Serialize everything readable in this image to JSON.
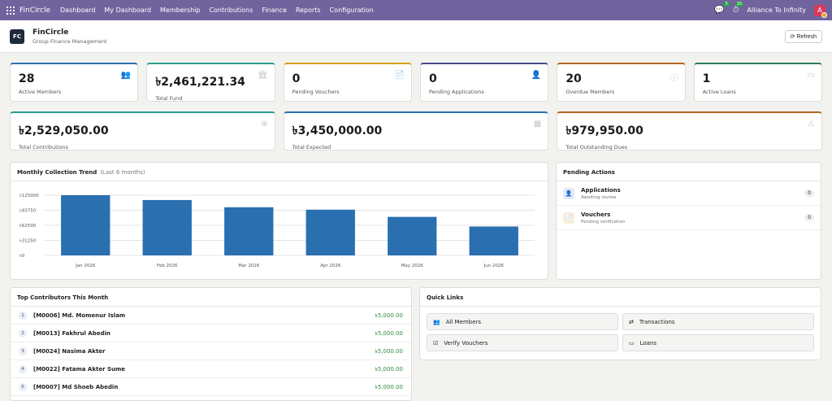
{
  "topbar": {
    "brand": "FinCircle",
    "nav": [
      "Dashboard",
      "My Dashboard",
      "Membership",
      "Contributions",
      "Finance",
      "Reports",
      "Configuration"
    ],
    "messages_count": "3",
    "activities_count": "31",
    "company": "Alliance To Infinity",
    "avatar_initial": "A"
  },
  "header": {
    "logo": "FC",
    "title": "FinCircle",
    "subtitle": "Group Finance Management",
    "refresh_label": "Refresh"
  },
  "stats_row1": [
    {
      "value": "28",
      "label": "Active Members",
      "icon": "users-icon",
      "color": "#2a6fb0"
    },
    {
      "value": "৳2,461,221.34",
      "label": "Total Fund",
      "icon": "bank-icon",
      "color": "#2a9d8f"
    },
    {
      "value": "0",
      "label": "Pending Vouchers",
      "icon": "file-icon",
      "color": "#d4a017"
    },
    {
      "value": "0",
      "label": "Pending Applications",
      "icon": "user-plus-icon",
      "color": "#4a4a8a"
    },
    {
      "value": "20",
      "label": "Overdue Members",
      "icon": "info-icon",
      "color": "#b5651d"
    },
    {
      "value": "1",
      "label": "Active Loans",
      "icon": "card-icon",
      "color": "#2a7d5a"
    }
  ],
  "stats_row2": [
    {
      "value": "৳2,529,050.00",
      "label": "Total Contributions",
      "icon": "plus-circle-icon",
      "color": "#2a9d8f"
    },
    {
      "value": "৳3,450,000.00",
      "label": "Total Expected",
      "icon": "calculator-icon",
      "color": "#2a6fb0"
    },
    {
      "value": "৳979,950.00",
      "label": "Total Outstanding Dues",
      "icon": "warning-icon",
      "color": "#b5651d"
    }
  ],
  "trend": {
    "title": "Monthly Collection Trend",
    "subtitle": "(Last 6 months)"
  },
  "chart_data": {
    "type": "bar",
    "categories": [
      "Jan 2026",
      "Feb 2026",
      "Mar 2026",
      "Apr 2026",
      "May 2026",
      "Jun 2026"
    ],
    "values": [
      125000,
      115000,
      100000,
      95000,
      80000,
      60000
    ],
    "ylim": [
      0,
      125000
    ],
    "yticks": [
      "৳125000",
      "৳93750",
      "৳62500",
      "৳31250",
      "৳0"
    ],
    "ytick_values": [
      125000,
      93750,
      62500,
      31250,
      0
    ],
    "bar_color": "#2a6fb0",
    "grid": true
  },
  "pending": {
    "title": "Pending Actions",
    "items": [
      {
        "title": "Applications",
        "sub": "Awaiting review",
        "count": "0",
        "icon": "user-plus-icon",
        "bg": "#e6e8f5",
        "fg": "#4a4a8a"
      },
      {
        "title": "Vouchers",
        "sub": "Pending verification",
        "count": "0",
        "icon": "file-icon",
        "bg": "#fbefd9",
        "fg": "#d4a017"
      }
    ]
  },
  "top_contributors": {
    "title": "Top Contributors This Month",
    "rows": [
      {
        "rank": "1",
        "name": "[M0006] Md. Momenur Islam",
        "amount": "৳5,000.00"
      },
      {
        "rank": "2",
        "name": "[M0013] Fakhrul Abedin",
        "amount": "৳5,000.00"
      },
      {
        "rank": "3",
        "name": "[M0024] Nasima Akter",
        "amount": "৳5,000.00"
      },
      {
        "rank": "4",
        "name": "[M0022] Fatama Akter Sume",
        "amount": "৳5,000.00"
      },
      {
        "rank": "5",
        "name": "[M0007] Md Shoeb Abedin",
        "amount": "৳5,000.00"
      }
    ]
  },
  "quick_links": {
    "title": "Quick Links",
    "items": [
      {
        "label": "All Members",
        "icon": "users-icon",
        "glyph": "👥"
      },
      {
        "label": "Transactions",
        "icon": "exchange-icon",
        "glyph": "⇄"
      },
      {
        "label": "Verify Vouchers",
        "icon": "check-square-icon",
        "glyph": "☑"
      },
      {
        "label": "Loans",
        "icon": "card-icon",
        "glyph": "▭"
      }
    ]
  }
}
